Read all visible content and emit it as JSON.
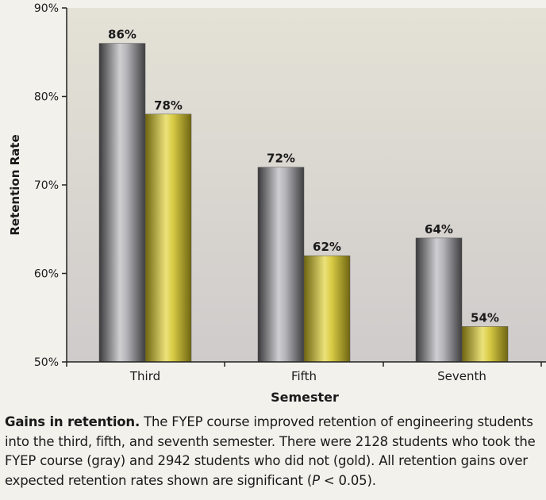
{
  "chart_data": {
    "type": "bar",
    "categories": [
      "Third",
      "Fifth",
      "Seventh"
    ],
    "series": [
      {
        "values": [
          86,
          72,
          64
        ],
        "color": "#8a8a8d"
      },
      {
        "values": [
          78,
          62,
          54
        ],
        "color": "#c7b52a"
      }
    ],
    "data_labels": [
      [
        "86%",
        "72%",
        "64%"
      ],
      [
        "78%",
        "62%",
        "54%"
      ]
    ],
    "xlabel": "Semester",
    "ylabel": "Retention Rate",
    "ylim": [
      50,
      90
    ],
    "yticks": [
      50,
      60,
      70,
      80,
      90
    ],
    "ytick_labels": [
      "50%",
      "60%",
      "70%",
      "80%",
      "90%"
    ],
    "grid": false,
    "legend": "none"
  },
  "caption": {
    "title": "Gains in retention.",
    "text": " The FYEP course improved retention of engineering students into the third, fifth, and seventh semester. There were 2128 students who took the FYEP course (gray) and 2942 students who did not (gold). All retention gains over expected retention rates shown are significant (",
    "p_symbol": "P",
    "p_tail": " < 0.05)."
  }
}
